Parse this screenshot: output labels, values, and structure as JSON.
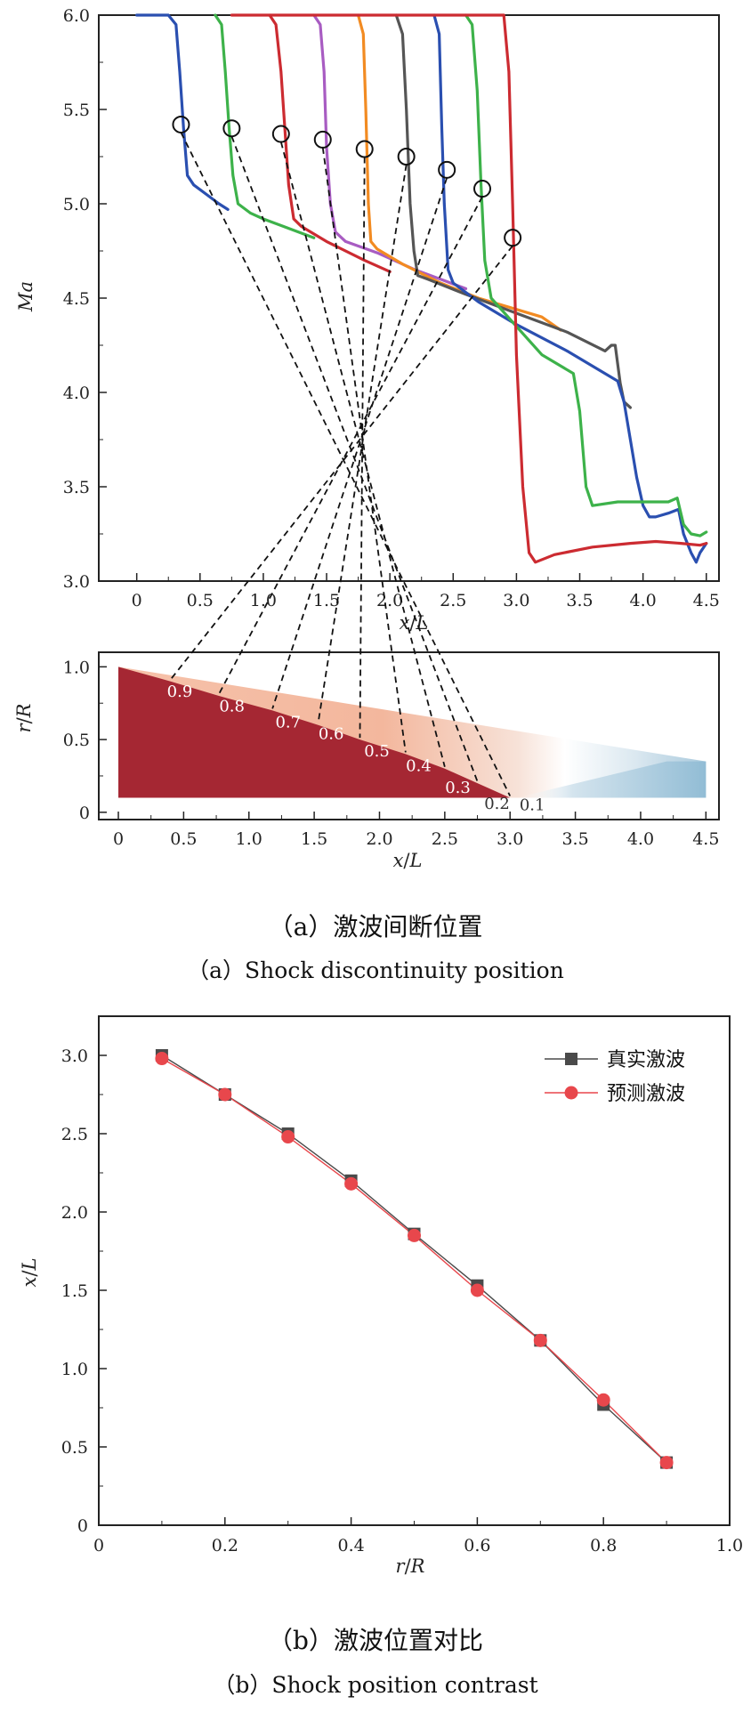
{
  "chart_data": [
    {
      "type": "line",
      "panel": "a-top",
      "xlabel_parts": [
        "x",
        "/",
        "L"
      ],
      "ylabel": "Ma",
      "xlim": [
        -0.3,
        4.6
      ],
      "ylim": [
        3.0,
        6.0
      ],
      "xticks": [
        "0",
        "0.5",
        "1.0",
        "1.5",
        "2.0",
        "2.5",
        "3.0",
        "3.5",
        "4.0",
        "4.5"
      ],
      "yticks": [
        "3.0",
        "3.5",
        "4.0",
        "4.5",
        "5.0",
        "5.5",
        "6.0"
      ],
      "series": [
        {
          "color": "#2a4fb0",
          "x": [
            0,
            0.25,
            0.31,
            0.34,
            0.37,
            0.4,
            0.45,
            0.55,
            0.65,
            0.72
          ],
          "y": [
            6.0,
            6.0,
            5.95,
            5.7,
            5.4,
            5.15,
            5.1,
            5.05,
            5.0,
            4.97
          ]
        },
        {
          "color": "#3db24a",
          "x": [
            0.62,
            0.67,
            0.7,
            0.73,
            0.76,
            0.8,
            0.9,
            1.0,
            1.2,
            1.4
          ],
          "y": [
            6.0,
            5.95,
            5.7,
            5.4,
            5.15,
            5.0,
            4.95,
            4.92,
            4.87,
            4.82
          ]
        },
        {
          "color": "#cc2b31",
          "x": [
            1.05,
            1.1,
            1.14,
            1.17,
            1.2,
            1.24,
            1.3,
            1.5,
            1.8,
            2.0
          ],
          "y": [
            6.0,
            5.95,
            5.7,
            5.4,
            5.1,
            4.92,
            4.88,
            4.8,
            4.7,
            4.64
          ]
        },
        {
          "color": "#a85cc2",
          "x": [
            1.4,
            1.45,
            1.48,
            1.5,
            1.53,
            1.57,
            1.65,
            1.9,
            2.2,
            2.4,
            2.6
          ],
          "y": [
            6.0,
            5.95,
            5.7,
            5.3,
            5.0,
            4.85,
            4.8,
            4.74,
            4.65,
            4.6,
            4.55
          ]
        },
        {
          "color": "#f28b22",
          "x": [
            1.75,
            1.79,
            1.81,
            1.83,
            1.85,
            1.9,
            2.1,
            2.4,
            2.7,
            3.0,
            3.2,
            3.35
          ],
          "y": [
            6.0,
            5.9,
            5.5,
            5.0,
            4.8,
            4.76,
            4.68,
            4.58,
            4.5,
            4.44,
            4.4,
            4.33
          ]
        },
        {
          "color": "#555555",
          "x": [
            2.05,
            2.1,
            2.13,
            2.16,
            2.19,
            2.22,
            2.3,
            2.6,
            3.0,
            3.4,
            3.7,
            3.75,
            3.78,
            3.82,
            3.85,
            3.9
          ],
          "y": [
            6.0,
            5.9,
            5.5,
            5.0,
            4.75,
            4.62,
            4.6,
            4.52,
            4.42,
            4.32,
            4.22,
            4.25,
            4.25,
            4.05,
            3.95,
            3.92
          ]
        },
        {
          "color": "#2a4fb0",
          "x": [
            2.35,
            2.39,
            2.41,
            2.43,
            2.46,
            2.5,
            2.7,
            3.0,
            3.4,
            3.8,
            3.85,
            3.9,
            3.95,
            4.0,
            4.05,
            4.1,
            4.2,
            4.28,
            4.32,
            4.38,
            4.42,
            4.45,
            4.5
          ],
          "y": [
            6.0,
            5.9,
            5.4,
            5.0,
            4.65,
            4.58,
            4.48,
            4.36,
            4.22,
            4.06,
            3.95,
            3.75,
            3.55,
            3.4,
            3.34,
            3.34,
            3.36,
            3.38,
            3.25,
            3.15,
            3.1,
            3.15,
            3.2
          ]
        },
        {
          "color": "#3db24a",
          "x": [
            2.6,
            2.65,
            2.69,
            2.72,
            2.75,
            2.8,
            3.0,
            3.2,
            3.45,
            3.5,
            3.55,
            3.6,
            3.8,
            4.0,
            4.2,
            4.27,
            4.32,
            4.38,
            4.45,
            4.5
          ],
          "y": [
            6.0,
            5.95,
            5.6,
            5.1,
            4.7,
            4.5,
            4.35,
            4.2,
            4.1,
            3.9,
            3.5,
            3.4,
            3.42,
            3.42,
            3.42,
            3.44,
            3.3,
            3.25,
            3.24,
            3.26
          ]
        },
        {
          "color": "#cc2b31",
          "x": [
            0.75,
            2.9,
            2.94,
            2.97,
            3.0,
            3.05,
            3.1,
            3.15,
            3.3,
            3.6,
            3.9,
            4.1,
            4.3,
            4.45,
            4.5
          ],
          "y": [
            6.0,
            6.0,
            5.7,
            5.0,
            4.2,
            3.5,
            3.15,
            3.1,
            3.14,
            3.18,
            3.2,
            3.21,
            3.2,
            3.19,
            3.2
          ]
        }
      ],
      "markers": {
        "x": [
          0.35,
          0.75,
          1.14,
          1.47,
          1.8,
          2.13,
          2.45,
          2.73,
          2.97
        ],
        "y": [
          5.42,
          5.4,
          5.37,
          5.34,
          5.29,
          5.25,
          5.18,
          5.08,
          4.82
        ]
      }
    },
    {
      "type": "heatmap",
      "panel": "a-bottom",
      "xlabel_parts": [
        "x",
        "/",
        "L"
      ],
      "ylabel_parts": [
        "r",
        "/",
        "R"
      ],
      "xlim": [
        -0.15,
        4.6
      ],
      "ylim": [
        -0.05,
        1.1
      ],
      "xticks": [
        "0",
        "0.5",
        "1.0",
        "1.5",
        "2.0",
        "2.5",
        "3.0",
        "3.5",
        "4.0",
        "4.5"
      ],
      "yticks": [
        "0",
        "0.5",
        "1.0"
      ],
      "shock_front": {
        "r": [
          1.0,
          0.9,
          0.8,
          0.7,
          0.6,
          0.5,
          0.4,
          0.3,
          0.2,
          0.1
        ],
        "x": [
          0.0,
          0.4,
          0.77,
          1.18,
          1.53,
          1.85,
          2.2,
          2.5,
          2.75,
          3.0
        ]
      },
      "contour_labels": [
        {
          "text": "0.9",
          "x": 0.47,
          "r": 0.83
        },
        {
          "text": "0.8",
          "x": 0.87,
          "r": 0.73
        },
        {
          "text": "0.7",
          "x": 1.3,
          "r": 0.62
        },
        {
          "text": "0.6",
          "x": 1.63,
          "r": 0.54
        },
        {
          "text": "0.5",
          "x": 1.98,
          "r": 0.42
        },
        {
          "text": "0.4",
          "x": 2.3,
          "r": 0.32
        },
        {
          "text": "0.3",
          "x": 2.6,
          "r": 0.17
        },
        {
          "text": "0.2",
          "x": 2.9,
          "r": 0.06
        },
        {
          "text": "0.1",
          "x": 3.17,
          "r": 0.05
        }
      ]
    },
    {
      "type": "line",
      "panel": "b",
      "xlabel_parts": [
        "r",
        "/",
        "R"
      ],
      "ylabel_parts": [
        "x",
        "/",
        "L"
      ],
      "xlim": [
        0,
        1.0
      ],
      "ylim": [
        0,
        3.25
      ],
      "xticks": [
        "0",
        "0.2",
        "0.4",
        "0.6",
        "0.8",
        "1.0"
      ],
      "yticks": [
        "0",
        "0.5",
        "1.0",
        "1.5",
        "2.0",
        "2.5",
        "3.0"
      ],
      "series": [
        {
          "name": "真实激波",
          "color": "#4a4a4a",
          "marker": "square",
          "x": [
            0.1,
            0.2,
            0.3,
            0.4,
            0.5,
            0.6,
            0.7,
            0.8,
            0.9
          ],
          "y": [
            3.0,
            2.75,
            2.5,
            2.2,
            1.86,
            1.53,
            1.18,
            0.77,
            0.4
          ]
        },
        {
          "name": "预测激波",
          "color": "#e8474c",
          "marker": "circle",
          "x": [
            0.1,
            0.2,
            0.3,
            0.4,
            0.5,
            0.6,
            0.7,
            0.8,
            0.9
          ],
          "y": [
            2.98,
            2.75,
            2.48,
            2.18,
            1.85,
            1.5,
            1.18,
            0.8,
            0.4
          ]
        }
      ],
      "legend": "top-right"
    }
  ],
  "captions": {
    "a_cn": "（a）激波间断位置",
    "a_en": "（a）Shock discontinuity position",
    "b_cn": "（b）激波位置对比",
    "b_en": "（b）Shock position contrast"
  }
}
